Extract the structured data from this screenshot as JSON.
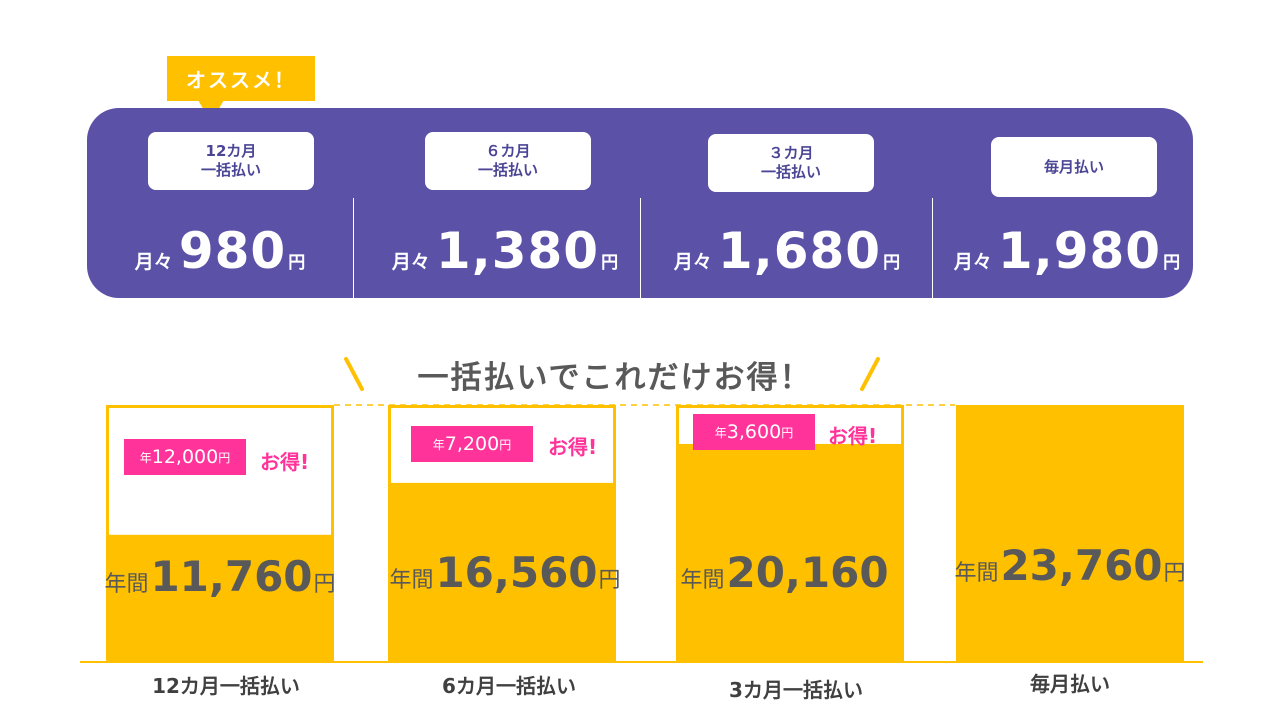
{
  "recommend_tag": "オススメ！",
  "plans": [
    {
      "label": "12カ月\n一括払い",
      "monthly_prefix": "月々",
      "monthly_price": "980",
      "unit": "円"
    },
    {
      "label": "６カ月\n一括払い",
      "monthly_prefix": "月々",
      "monthly_price": "1,380",
      "unit": "円"
    },
    {
      "label": "３カ月\n一括払い",
      "monthly_prefix": "月々",
      "monthly_price": "1,680",
      "unit": "円"
    },
    {
      "label": "毎月払い",
      "monthly_prefix": "月々",
      "monthly_price": "1,980",
      "unit": "円"
    }
  ],
  "heading": "一括払いでこれだけお得！",
  "colors": {
    "purple": "#5b52a8",
    "yellow": "#ffc000",
    "pink": "#ff3399",
    "text": "#595959"
  },
  "chart_data": {
    "type": "bar",
    "categories": [
      "12カ月一括払い",
      "6カ月一括払い",
      "3カ月一括払い",
      "毎月払い"
    ],
    "values": [
      11760,
      16560,
      20160,
      23760
    ],
    "value_prefix": "年間",
    "value_labels": [
      "11,760",
      "16,560",
      "20,160",
      "23,760"
    ],
    "value_units": [
      "円",
      "円",
      "",
      "円"
    ],
    "savings": [
      {
        "prefix": "年",
        "amount": "12,000",
        "unit": "円",
        "word": "お得!"
      },
      {
        "prefix": "年",
        "amount": "7,200",
        "unit": "円",
        "word": "お得!"
      },
      {
        "prefix": "年",
        "amount": "3,600",
        "unit": "円",
        "word": "お得!"
      },
      null
    ],
    "reference_value": 23760,
    "ylim": [
      0,
      23760
    ],
    "xlabel": "",
    "ylabel": ""
  }
}
